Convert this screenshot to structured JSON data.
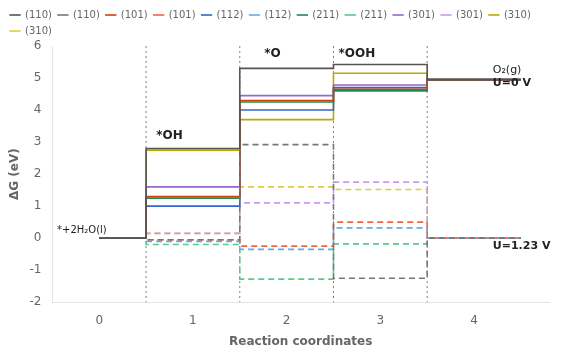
{
  "chart_data": {
    "type": "line",
    "xlabel": "Reaction coordinates",
    "ylabel": "ΔG (eV)",
    "xlim": [
      -0.5,
      4.8
    ],
    "ylim": [
      -2,
      6
    ],
    "xticks": [
      0,
      1,
      2,
      3,
      4
    ],
    "yticks": [
      -2,
      -1,
      0,
      1,
      2,
      3,
      4,
      5,
      6
    ],
    "grid": false,
    "legend": "upper left",
    "vlines": [
      0.5,
      1.5,
      2.5,
      3.5
    ],
    "annotations": [
      {
        "x": 0.75,
        "y": 3.1,
        "text": "*OH"
      },
      {
        "x": 1.85,
        "y": 5.65,
        "text": "*O"
      },
      {
        "x": 2.75,
        "y": 5.65,
        "text": "*OOH"
      },
      {
        "x": -0.45,
        "y": 0.15,
        "text": "*+2H₂O(l)"
      },
      {
        "x": 4.2,
        "y": 5.15,
        "text": "O₂(g)"
      },
      {
        "x": 4.2,
        "y": 4.75,
        "text": "U=0 V"
      },
      {
        "x": 4.2,
        "y": -0.35,
        "text": "U=1.23 V"
      }
    ],
    "series": [
      {
        "name": "(110)",
        "color": "#555555",
        "line_style": "solid",
        "x": [
          0,
          0.5,
          0.5,
          1.5,
          1.5,
          2.5,
          2.5,
          3.5,
          3.5,
          4.5
        ],
        "values": [
          0,
          0,
          2.8,
          2.8,
          5.3,
          5.3,
          5.42,
          5.42,
          4.95,
          4.95
        ]
      },
      {
        "name": "(110)",
        "color": "#777777",
        "line_style": "dashed",
        "x": [
          0,
          0.5,
          0.5,
          1.5,
          1.5,
          2.5,
          2.5,
          3.5,
          3.5,
          4.5
        ],
        "values": [
          0,
          0,
          -0.05,
          -0.05,
          2.92,
          2.92,
          -1.25,
          -1.25,
          0.0,
          0.0
        ]
      },
      {
        "name": "(101)",
        "color": "#cc4400",
        "line_style": "solid",
        "x": [
          0,
          0.5,
          0.5,
          1.5,
          1.5,
          2.5,
          2.5,
          3.5,
          3.5,
          4.5
        ],
        "values": [
          0,
          0,
          1.3,
          1.3,
          4.3,
          4.3,
          4.65,
          4.65,
          4.95,
          4.95
        ]
      },
      {
        "name": "(101)",
        "color": "#ee6644",
        "line_style": "dashed",
        "x": [
          0,
          0.5,
          0.5,
          1.5,
          1.5,
          2.5,
          2.5,
          3.5,
          3.5,
          4.5
        ],
        "values": [
          0,
          0,
          -0.05,
          -0.05,
          -0.25,
          -0.25,
          0.5,
          0.5,
          0.0,
          0.0
        ]
      },
      {
        "name": "(112)",
        "color": "#3366cc",
        "line_style": "solid",
        "x": [
          0,
          0.5,
          0.5,
          1.5,
          1.5,
          2.5,
          2.5,
          3.5,
          3.5,
          4.5
        ],
        "values": [
          0,
          0,
          1.0,
          1.0,
          4.0,
          4.0,
          4.7,
          4.7,
          4.95,
          4.95
        ]
      },
      {
        "name": "(112)",
        "color": "#66aaee",
        "line_style": "dashed",
        "x": [
          0,
          0.5,
          0.5,
          1.5,
          1.5,
          2.5,
          2.5,
          3.5,
          3.5,
          4.5
        ],
        "values": [
          0,
          0,
          -0.1,
          -0.1,
          -0.35,
          -0.35,
          0.32,
          0.32,
          0.0,
          0.0
        ]
      },
      {
        "name": "(211)",
        "color": "#228855",
        "line_style": "solid",
        "x": [
          0,
          0.5,
          0.5,
          1.5,
          1.5,
          2.5,
          2.5,
          3.5,
          3.5,
          4.5
        ],
        "values": [
          0,
          0,
          1.25,
          1.25,
          4.25,
          4.25,
          4.6,
          4.6,
          4.95,
          4.95
        ]
      },
      {
        "name": "(211)",
        "color": "#55cc88",
        "line_style": "dashed",
        "x": [
          0,
          0.5,
          0.5,
          1.5,
          1.5,
          2.5,
          2.5,
          3.5,
          3.5,
          4.5
        ],
        "values": [
          0,
          0,
          -0.2,
          -0.2,
          -1.28,
          -1.28,
          -0.18,
          -0.18,
          0.0,
          0.0
        ]
      },
      {
        "name": "(301)",
        "color": "#9966cc",
        "line_style": "solid",
        "x": [
          0,
          0.5,
          0.5,
          1.5,
          1.5,
          2.5,
          2.5,
          3.5,
          3.5,
          4.5
        ],
        "values": [
          0,
          0,
          1.6,
          1.6,
          4.45,
          4.45,
          4.78,
          4.78,
          4.95,
          4.95
        ]
      },
      {
        "name": "(301)",
        "color": "#cc99ee",
        "line_style": "dashed",
        "x": [
          0,
          0.5,
          0.5,
          1.5,
          1.5,
          2.5,
          2.5,
          3.5,
          3.5,
          4.5
        ],
        "values": [
          0,
          0,
          0.15,
          0.15,
          1.1,
          1.1,
          1.75,
          1.75,
          0.0,
          0.0
        ]
      },
      {
        "name": "(310)",
        "color": "#bbaa00",
        "line_style": "solid",
        "x": [
          0,
          0.5,
          0.5,
          1.5,
          1.5,
          2.5,
          2.5,
          3.5,
          3.5,
          4.5
        ],
        "values": [
          0,
          0,
          2.75,
          2.75,
          3.7,
          3.7,
          5.15,
          5.15,
          4.95,
          4.95
        ]
      },
      {
        "name": "(310)",
        "color": "#ddcc44",
        "line_style": "dashed",
        "x": [
          0,
          0.5,
          0.5,
          1.5,
          1.5,
          2.5,
          2.5,
          3.5,
          3.5,
          4.5
        ],
        "values": [
          0,
          0,
          0.15,
          0.15,
          1.6,
          1.6,
          1.52,
          1.52,
          0.0,
          0.0
        ]
      }
    ]
  }
}
